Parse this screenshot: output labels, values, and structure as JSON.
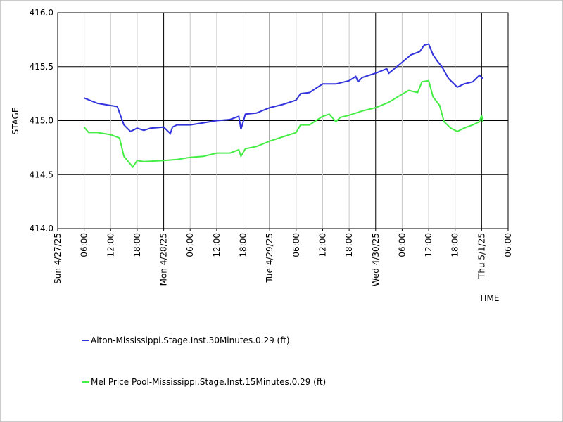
{
  "chart_data": {
    "type": "line",
    "ylabel": "STAGE",
    "xlabel": "TIME",
    "ylim": [
      414,
      416
    ],
    "yticks": [
      {
        "value": 414,
        "label": "414.0"
      },
      414.5,
      {
        "value": 415,
        "label": "415.0"
      },
      415.5,
      {
        "value": 416,
        "label": "416.0"
      }
    ],
    "xlim": [
      "2025-04-27T00:00",
      "2025-05-01T06:00"
    ],
    "xticks": [
      {
        "value": "2025-04-27T00:00",
        "label": "Sun 4/27/25"
      },
      {
        "value": "2025-04-27T06:00",
        "label": "06:00"
      },
      {
        "value": "2025-04-27T12:00",
        "label": "12:00"
      },
      {
        "value": "2025-04-27T18:00",
        "label": "18:00"
      },
      {
        "value": "2025-04-28T00:00",
        "label": "Mon 4/28/25"
      },
      {
        "value": "2025-04-28T06:00",
        "label": "06:00"
      },
      {
        "value": "2025-04-28T12:00",
        "label": "12:00"
      },
      {
        "value": "2025-04-28T18:00",
        "label": "18:00"
      },
      {
        "value": "2025-04-29T00:00",
        "label": "Tue 4/29/25"
      },
      {
        "value": "2025-04-29T06:00",
        "label": "06:00"
      },
      {
        "value": "2025-04-29T12:00",
        "label": "12:00"
      },
      {
        "value": "2025-04-29T18:00",
        "label": "18:00"
      },
      {
        "value": "2025-04-30T00:00",
        "label": "Wed 4/30/25"
      },
      {
        "value": "2025-04-30T06:00",
        "label": "06:00"
      },
      {
        "value": "2025-04-30T12:00",
        "label": "12:00"
      },
      {
        "value": "2025-04-30T18:00",
        "label": "18:00"
      },
      {
        "value": "2025-05-01T00:00",
        "label": "Thu 5/1/25"
      },
      {
        "value": "2025-05-01T06:00",
        "label": "06:00"
      }
    ],
    "grid": true,
    "series": [
      {
        "name": "Alton-Mississippi.Stage.Inst.30Minutes.0.29 (ft)",
        "color": "#3333dd",
        "x": [
          "2025-04-27T06:00",
          "2025-04-27T09:00",
          "2025-04-27T12:00",
          "2025-04-27T13:30",
          "2025-04-27T15:00",
          "2025-04-27T16:30",
          "2025-04-27T18:00",
          "2025-04-27T19:30",
          "2025-04-27T21:00",
          "2025-04-28T00:00",
          "2025-04-28T01:30",
          "2025-04-28T02:00",
          "2025-04-28T03:00",
          "2025-04-28T06:00",
          "2025-04-28T09:00",
          "2025-04-28T12:00",
          "2025-04-28T15:00",
          "2025-04-28T17:00",
          "2025-04-28T17:30",
          "2025-04-28T18:30",
          "2025-04-28T21:00",
          "2025-04-29T00:00",
          "2025-04-29T03:00",
          "2025-04-29T06:00",
          "2025-04-29T07:00",
          "2025-04-29T09:00",
          "2025-04-29T12:00",
          "2025-04-29T15:00",
          "2025-04-29T18:00",
          "2025-04-29T19:30",
          "2025-04-29T20:00",
          "2025-04-29T21:00",
          "2025-04-30T00:00",
          "2025-04-30T02:30",
          "2025-04-30T03:00",
          "2025-04-30T06:00",
          "2025-04-30T08:00",
          "2025-04-30T10:00",
          "2025-04-30T11:00",
          "2025-04-30T12:00",
          "2025-04-30T13:00",
          "2025-04-30T14:00",
          "2025-04-30T15:00",
          "2025-04-30T16:30",
          "2025-04-30T18:30",
          "2025-04-30T20:00",
          "2025-04-30T22:00",
          "2025-04-30T23:30",
          "2025-05-01T00:15"
        ],
        "values": [
          415.21,
          415.16,
          415.14,
          415.13,
          414.96,
          414.9,
          414.93,
          414.91,
          414.93,
          414.94,
          414.88,
          414.94,
          414.96,
          414.96,
          414.98,
          415.0,
          415.01,
          415.04,
          414.92,
          415.06,
          415.07,
          415.12,
          415.15,
          415.19,
          415.25,
          415.26,
          415.34,
          415.34,
          415.37,
          415.41,
          415.36,
          415.4,
          415.44,
          415.48,
          415.44,
          415.54,
          415.61,
          415.64,
          415.7,
          415.71,
          415.61,
          415.55,
          415.5,
          415.39,
          415.31,
          415.34,
          415.36,
          415.42,
          415.39
        ]
      },
      {
        "name": "Mel Price Pool-Mississippi.Stage.Inst.15Minutes.0.29 (ft)",
        "color": "#44ee44",
        "x": [
          "2025-04-27T06:00",
          "2025-04-27T07:00",
          "2025-04-27T09:00",
          "2025-04-27T12:00",
          "2025-04-27T14:00",
          "2025-04-27T15:00",
          "2025-04-27T17:00",
          "2025-04-27T18:00",
          "2025-04-27T19:30",
          "2025-04-28T00:00",
          "2025-04-28T03:00",
          "2025-04-28T06:00",
          "2025-04-28T09:00",
          "2025-04-28T12:00",
          "2025-04-28T15:00",
          "2025-04-28T17:00",
          "2025-04-28T17:30",
          "2025-04-28T18:30",
          "2025-04-28T21:00",
          "2025-04-29T00:00",
          "2025-04-29T03:00",
          "2025-04-29T06:00",
          "2025-04-29T07:00",
          "2025-04-29T09:00",
          "2025-04-29T12:00",
          "2025-04-29T13:30",
          "2025-04-29T15:00",
          "2025-04-29T16:00",
          "2025-04-29T18:00",
          "2025-04-29T21:00",
          "2025-04-30T00:00",
          "2025-04-30T03:00",
          "2025-04-30T05:00",
          "2025-04-30T07:30",
          "2025-04-30T09:30",
          "2025-04-30T10:30",
          "2025-04-30T12:00",
          "2025-04-30T13:00",
          "2025-04-30T14:30",
          "2025-04-30T15:30",
          "2025-04-30T17:00",
          "2025-04-30T18:30",
          "2025-04-30T20:00",
          "2025-04-30T22:00",
          "2025-04-30T23:30",
          "2025-05-01T00:00",
          "2025-05-01T00:15"
        ],
        "values": [
          414.94,
          414.89,
          414.89,
          414.87,
          414.84,
          414.67,
          414.57,
          414.63,
          414.62,
          414.63,
          414.64,
          414.66,
          414.67,
          414.7,
          414.7,
          414.73,
          414.67,
          414.74,
          414.76,
          414.81,
          414.85,
          414.89,
          414.96,
          414.96,
          415.04,
          415.06,
          414.99,
          415.03,
          415.05,
          415.09,
          415.12,
          415.17,
          415.22,
          415.28,
          415.26,
          415.36,
          415.37,
          415.22,
          415.14,
          414.99,
          414.93,
          414.9,
          414.93,
          414.96,
          414.99,
          415.05,
          414.99
        ]
      }
    ]
  }
}
